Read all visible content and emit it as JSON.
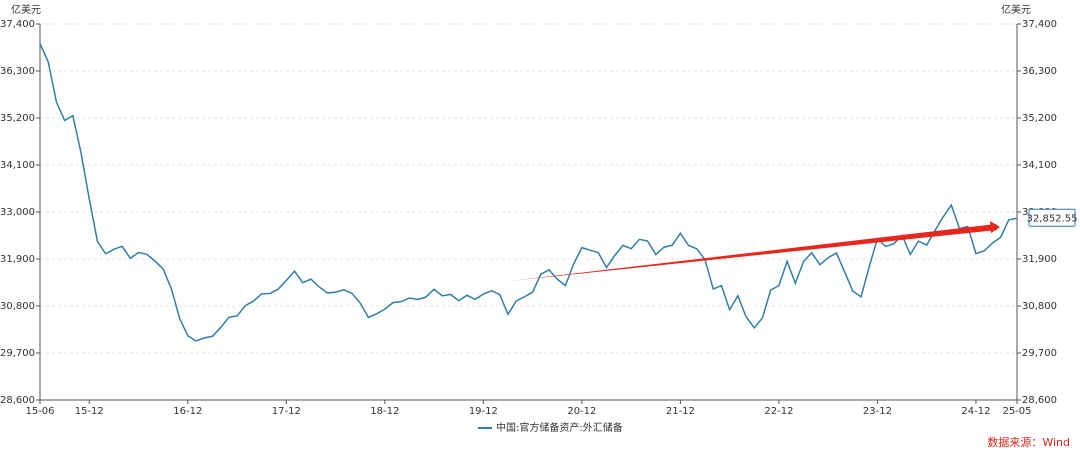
{
  "chart_data": {
    "type": "line",
    "y_unit": "亿美元",
    "source": "数据来源：Wind",
    "categories": [
      "15-06",
      null,
      null,
      null,
      null,
      null,
      "15-12",
      null,
      null,
      null,
      null,
      null,
      null,
      null,
      null,
      null,
      null,
      null,
      "16-12",
      null,
      null,
      null,
      null,
      null,
      null,
      null,
      null,
      null,
      null,
      null,
      "17-12",
      null,
      null,
      null,
      null,
      null,
      null,
      null,
      null,
      null,
      null,
      null,
      "18-12",
      null,
      null,
      null,
      null,
      null,
      null,
      null,
      null,
      null,
      null,
      null,
      "19-12",
      null,
      null,
      null,
      null,
      null,
      null,
      null,
      null,
      null,
      null,
      null,
      "20-12",
      null,
      null,
      null,
      null,
      null,
      null,
      null,
      null,
      null,
      null,
      null,
      "21-12",
      null,
      null,
      null,
      null,
      null,
      null,
      null,
      null,
      null,
      null,
      null,
      "22-12",
      null,
      null,
      null,
      null,
      null,
      null,
      null,
      null,
      null,
      null,
      null,
      "23-12",
      null,
      null,
      null,
      null,
      null,
      null,
      null,
      null,
      null,
      null,
      null,
      "24-12",
      null,
      null,
      null,
      null,
      "25-05"
    ],
    "series": [
      {
        "name": "中国:官方储备资产:外汇储备",
        "color": "#2f7ea8",
        "values": [
          36938,
          36513,
          35574,
          35141,
          35255,
          34383,
          33304,
          32309,
          32023,
          32126,
          32197,
          31917,
          32052,
          32011,
          31852,
          31664,
          31206,
          30516,
          30105,
          29982,
          30051,
          30091,
          30295,
          30536,
          30568,
          30807,
          30915,
          31085,
          31092,
          31193,
          31399,
          31615,
          31345,
          31428,
          31248,
          31106,
          31121,
          31179,
          31097,
          30870,
          30531,
          30617,
          30727,
          30879,
          30902,
          30988,
          30952,
          31010,
          31192,
          31037,
          31072,
          30924,
          31052,
          30956,
          31079,
          31155,
          31067,
          30606,
          30915,
          31017,
          31123,
          31544,
          31646,
          31426,
          31280,
          31785,
          32165,
          32107,
          32050,
          31700,
          31982,
          32218,
          32140,
          32359,
          32321,
          32006,
          32176,
          32224,
          32502,
          32216,
          32138,
          31880,
          31197,
          31278,
          30713,
          31041,
          30549,
          30290,
          30524,
          31175,
          31277,
          31845,
          31332,
          31839,
          32048,
          31765,
          31930,
          32043,
          31601,
          31151,
          31012,
          31718,
          32380,
          32193,
          32258,
          32457,
          32008,
          32320,
          32224,
          32564,
          32882,
          33164,
          32611,
          32659,
          32024,
          32090,
          32272,
          32407,
          32817,
          32852.55
        ],
        "value_labels": [
          null,
          null,
          null,
          null,
          null,
          null,
          null,
          null,
          null,
          null,
          null,
          null,
          null,
          null,
          null,
          null,
          null,
          null,
          null,
          null,
          null,
          null,
          null,
          null,
          null,
          null,
          null,
          null,
          null,
          null,
          null,
          null,
          null,
          null,
          null,
          null,
          null,
          null,
          null,
          null,
          null,
          null,
          null,
          null,
          null,
          null,
          null,
          null,
          null,
          null,
          null,
          null,
          null,
          null,
          null,
          null,
          null,
          null,
          null,
          null,
          null,
          null,
          null,
          null,
          null,
          null,
          null,
          null,
          null,
          null,
          null,
          null,
          null,
          null,
          null,
          null,
          null,
          null,
          null,
          null,
          null,
          null,
          null,
          null,
          null,
          null,
          null,
          null,
          null,
          null,
          null,
          null,
          null,
          null,
          null,
          null,
          null,
          null,
          null,
          null,
          null,
          null,
          null,
          null,
          null,
          null,
          null,
          null,
          null,
          null,
          null,
          null,
          null,
          null,
          null,
          null,
          null,
          null,
          null,
          "32,852.55"
        ]
      }
    ],
    "ylim": [
      28600,
      37400
    ],
    "yticks": [
      {
        "value": 28600,
        "label": "28,600"
      },
      {
        "value": 29700,
        "label": "29,700"
      },
      {
        "value": 30800,
        "label": "30,800"
      },
      {
        "value": 31900,
        "label": "31,900"
      },
      {
        "value": 33000,
        "label": "33,000"
      },
      {
        "value": 34100,
        "label": "34,100"
      },
      {
        "value": 35200,
        "label": "35,200"
      },
      {
        "value": 36300,
        "label": "36,300"
      },
      {
        "value": 37400,
        "label": "37,400"
      }
    ],
    "grid": true
  }
}
